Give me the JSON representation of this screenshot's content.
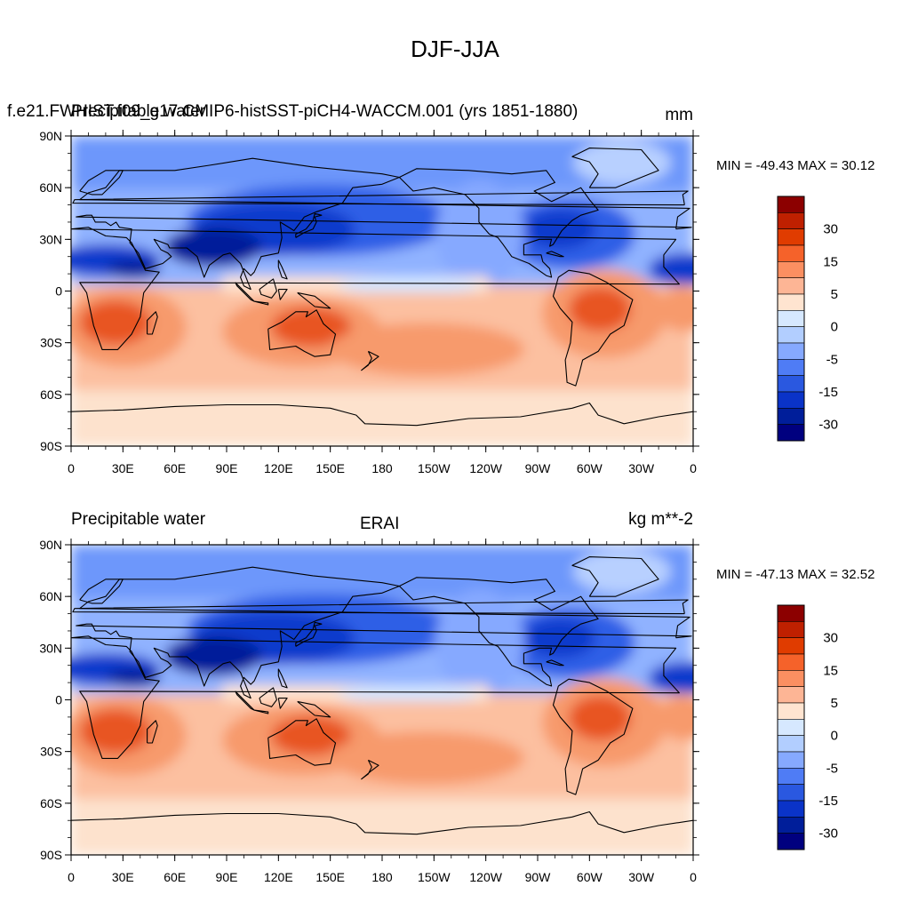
{
  "main_title": "DJF-JJA",
  "panels": [
    {
      "left_string": "Precipitable water",
      "center_string": "f.e21.FWHIST.f09_g17.CMIP6-histSST-piCH4-WACCM.001 (yrs 1851-1880)",
      "right_string": "mm",
      "stats": "MIN = -49.43 MAX =  30.12"
    },
    {
      "left_string": "Precipitable water",
      "center_string": "ERAI",
      "right_string": "kg m**-2",
      "stats": "MIN = -47.13 MAX =  32.52"
    }
  ],
  "lat_labels": [
    "90N",
    "60N",
    "30N",
    "0",
    "30S",
    "60S",
    "90S"
  ],
  "lon_labels": [
    "0",
    "30E",
    "60E",
    "90E",
    "120E",
    "150E",
    "180",
    "150W",
    "120W",
    "90W",
    "60W",
    "30W",
    "0"
  ],
  "labelbar": {
    "colors": [
      "#8c0000",
      "#bf2000",
      "#e03c00",
      "#f5622a",
      "#fb8f61",
      "#fdb595",
      "#ffe4d0",
      "#d6e8ff",
      "#b2ceff",
      "#86a9ff",
      "#4f7cf5",
      "#2a58e0",
      "#0a33c8",
      "#001e9a",
      "#00007f"
    ],
    "labels": [
      "30",
      "15",
      "5",
      "0",
      "-5",
      "-15",
      "-30"
    ]
  },
  "colors": {
    "deep_blue": "#0a2ba8",
    "mid_blue": "#3f6ee8",
    "light_blue": "#90b2ff",
    "pale_blue": "#d4e6ff",
    "pale_orange": "#fde2cd",
    "light_orange": "#fcc0a0",
    "mid_orange": "#f79a6c",
    "deep_orange": "#e85524"
  }
}
